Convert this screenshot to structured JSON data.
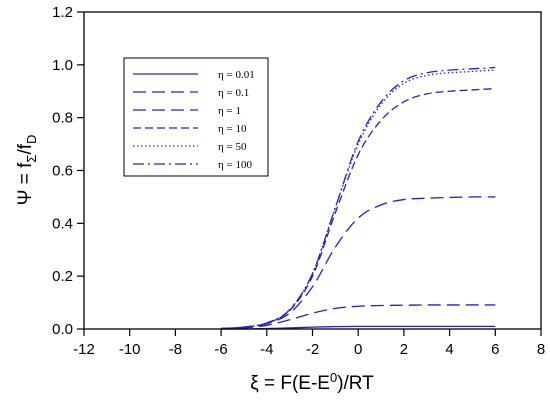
{
  "chart_data": {
    "type": "line",
    "xlabel": "ξ = F(E-E⁰)/RT",
    "ylabel": "Ψ = f_Σ/f_D",
    "xlim": [
      -12,
      8
    ],
    "ylim": [
      0,
      1.2
    ],
    "xticks": [
      -12,
      -10,
      -8,
      -6,
      -4,
      -2,
      0,
      2,
      4,
      6,
      8
    ],
    "yticks": [
      0.0,
      0.2,
      0.4,
      0.6,
      0.8,
      1.0,
      1.2
    ],
    "grid": false,
    "legend_position": "top-left",
    "line_color": "#2323c8",
    "series": [
      {
        "name": "η = 0.01",
        "dash": "solid",
        "x": [
          -6,
          -5,
          -4,
          -3,
          -2,
          -1,
          0,
          1,
          2,
          3,
          4,
          5,
          6
        ],
        "y": [
          0,
          0,
          0.002,
          0.004,
          0.007,
          0.009,
          0.0099,
          0.01,
          0.01,
          0.01,
          0.01,
          0.01,
          0.01
        ]
      },
      {
        "name": "η = 0.1",
        "dash": "long",
        "x": [
          -6,
          -5,
          -4,
          -3,
          -2,
          -1,
          0,
          1,
          2,
          3,
          4,
          5,
          6
        ],
        "y": [
          0.001,
          0.004,
          0.014,
          0.035,
          0.06,
          0.078,
          0.086,
          0.089,
          0.09,
          0.091,
          0.091,
          0.091,
          0.091
        ]
      },
      {
        "name": "η = 1",
        "dash": "long",
        "x": [
          -6,
          -5,
          -4,
          -3,
          -2,
          -1,
          0,
          1,
          2,
          3,
          4,
          5,
          6
        ],
        "y": [
          0.002,
          0.007,
          0.02,
          0.06,
          0.16,
          0.31,
          0.42,
          0.47,
          0.49,
          0.495,
          0.498,
          0.5,
          0.5
        ]
      },
      {
        "name": "η = 10",
        "dash": "medium",
        "x": [
          -6,
          -5,
          -4,
          -3,
          -2,
          -1,
          0,
          1,
          2,
          3,
          4,
          5,
          6
        ],
        "y": [
          0.002,
          0.007,
          0.022,
          0.07,
          0.2,
          0.44,
          0.66,
          0.79,
          0.86,
          0.89,
          0.9,
          0.905,
          0.91
        ]
      },
      {
        "name": "η = 50",
        "dash": "dotted",
        "x": [
          -6,
          -5,
          -4,
          -3,
          -2,
          -1,
          0,
          1,
          2,
          3,
          4,
          5,
          6
        ],
        "y": [
          0.002,
          0.007,
          0.023,
          0.072,
          0.21,
          0.46,
          0.7,
          0.85,
          0.93,
          0.96,
          0.97,
          0.975,
          0.98
        ]
      },
      {
        "name": "η = 100",
        "dash": "dashdot",
        "x": [
          -6,
          -5,
          -4,
          -3,
          -2,
          -1,
          0,
          1,
          2,
          3,
          4,
          5,
          6
        ],
        "y": [
          0.002,
          0.007,
          0.023,
          0.073,
          0.21,
          0.46,
          0.71,
          0.86,
          0.94,
          0.97,
          0.98,
          0.985,
          0.99
        ]
      }
    ]
  }
}
